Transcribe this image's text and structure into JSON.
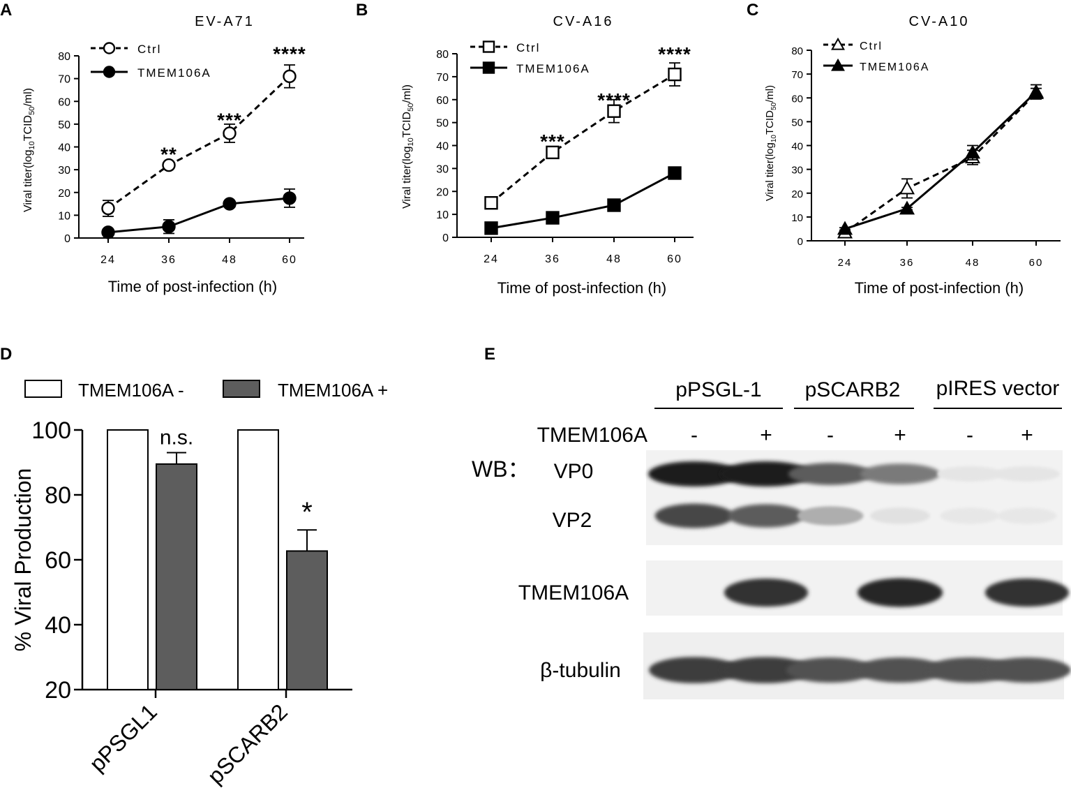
{
  "chart_data": [
    {
      "panel": "A",
      "type": "line",
      "title": "EV-A71",
      "xlabel": "Time of post-infection (h)",
      "ylabel_main": "Viral titer(log",
      "ylabel_sub1": "10",
      "ylabel_mid": "TCID",
      "ylabel_sub2": "50",
      "ylabel_end": "/ml)",
      "x": [
        24,
        36,
        48,
        60
      ],
      "ylim": [
        0,
        80
      ],
      "yticks": [
        0,
        10,
        20,
        30,
        40,
        50,
        60,
        70,
        80
      ],
      "marker": "circle",
      "series": [
        {
          "name": "Ctrl",
          "values": [
            13,
            32,
            46,
            71
          ],
          "err": [
            3.5,
            1,
            4,
            5
          ],
          "style": "dashed",
          "filled": false
        },
        {
          "name": "TMEM106A",
          "values": [
            2.5,
            5,
            15,
            17.5
          ],
          "err": [
            1,
            3,
            1,
            4
          ],
          "style": "solid",
          "filled": true
        }
      ],
      "annotations": [
        {
          "x": 36,
          "text": "**",
          "y": 37
        },
        {
          "x": 48,
          "text": "***",
          "y": 52
        },
        {
          "x": 60,
          "text": "****",
          "y": 81
        }
      ]
    },
    {
      "panel": "B",
      "type": "line",
      "title": "CV-A16",
      "xlabel": "Time of post-infection (h)",
      "ylabel_main": "Viral titer(log",
      "ylabel_sub1": "10",
      "ylabel_mid": "TCID",
      "ylabel_sub2": "50",
      "ylabel_end": "/ml)",
      "x": [
        24,
        36,
        48,
        60
      ],
      "ylim": [
        0,
        80
      ],
      "yticks": [
        0,
        10,
        20,
        30,
        40,
        50,
        60,
        70,
        80
      ],
      "marker": "square",
      "series": [
        {
          "name": "Ctrl",
          "values": [
            15,
            37,
            55,
            71
          ],
          "err": [
            1,
            2,
            5,
            5
          ],
          "style": "dashed",
          "filled": false
        },
        {
          "name": "TMEM106A",
          "values": [
            4,
            8.5,
            14,
            28
          ],
          "err": [
            0.5,
            0.5,
            0.5,
            0.5
          ],
          "style": "solid",
          "filled": true
        }
      ],
      "annotations": [
        {
          "x": 36,
          "text": "***",
          "y": 42
        },
        {
          "x": 48,
          "text": "****",
          "y": 60
        },
        {
          "x": 60,
          "text": "****",
          "y": 80
        }
      ]
    },
    {
      "panel": "C",
      "type": "line",
      "title": "CV-A10",
      "xlabel": "Time of post-infection (h)",
      "ylabel_main": "Viral titer(log",
      "ylabel_sub1": "10",
      "ylabel_mid": "TCID",
      "ylabel_sub2": "50",
      "ylabel_end": "/ml)",
      "x": [
        24,
        36,
        48,
        60
      ],
      "ylim": [
        0,
        80
      ],
      "yticks": [
        0,
        10,
        20,
        30,
        40,
        50,
        60,
        70,
        80
      ],
      "marker": "triangle",
      "series": [
        {
          "name": "Ctrl",
          "values": [
            3.5,
            22,
            35,
            62
          ],
          "err": [
            0.5,
            4,
            3,
            2
          ],
          "style": "dashed",
          "filled": false
        },
        {
          "name": "TMEM106A",
          "values": [
            5,
            13.5,
            37,
            62.5
          ],
          "err": [
            0.5,
            0.5,
            3,
            3
          ],
          "style": "solid",
          "filled": true
        }
      ],
      "annotations": []
    },
    {
      "panel": "D",
      "type": "bar",
      "categories": [
        "pPSGL1",
        "pSCARB2"
      ],
      "ylabel": "% Viral Production",
      "ylim": [
        20,
        100
      ],
      "yticks": [
        20,
        40,
        60,
        80,
        100
      ],
      "series": [
        {
          "name": "TMEM106A -",
          "values": [
            100,
            100
          ],
          "color": "#ffffff"
        },
        {
          "name": "TMEM106A +",
          "values": [
            89.5,
            62.7
          ],
          "err": [
            3.5,
            6.5
          ],
          "color": "#5d5d5d"
        }
      ],
      "annotations": [
        {
          "category": "pPSGL1",
          "text": "n.s."
        },
        {
          "category": "pSCARB2",
          "text": "*"
        }
      ]
    }
  ],
  "panel_labels": {
    "a": "A",
    "b": "B",
    "c": "C",
    "d": "D",
    "e": "E"
  },
  "western_blot": {
    "groups": [
      "pPSGL-1",
      "pSCARB2",
      "pIRES vector"
    ],
    "row_label": "TMEM106A",
    "signs": [
      "-",
      "+",
      "-",
      "+",
      "-",
      "+"
    ],
    "wb_label": "WB：",
    "bands": [
      "VP0",
      "VP2",
      "TMEM106A",
      "β-tubulin"
    ],
    "band_intensity": {
      "VP0": [
        1.0,
        1.0,
        0.7,
        0.55,
        0.03,
        0.03
      ],
      "VP2": [
        0.8,
        0.7,
        0.3,
        0.05,
        0.02,
        0.02
      ],
      "TMEM106A": [
        0.0,
        0.9,
        0.0,
        0.95,
        0.0,
        0.9
      ],
      "β-tubulin": [
        0.85,
        0.85,
        0.75,
        0.75,
        0.75,
        0.75
      ]
    }
  }
}
